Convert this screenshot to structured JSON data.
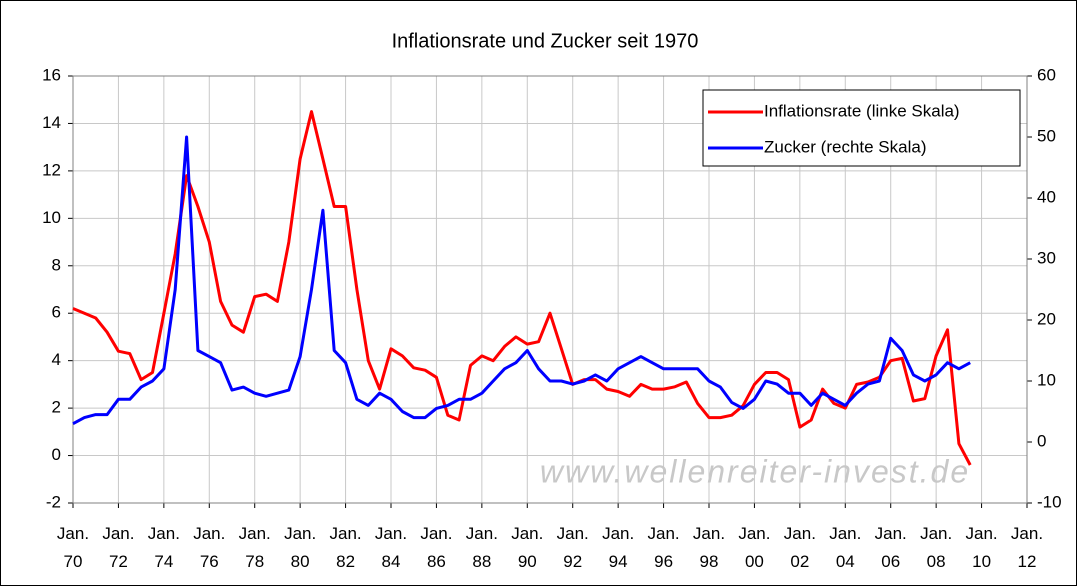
{
  "chart_data": {
    "type": "line",
    "title": "Inflationsrate und Zucker seit 1970",
    "watermark": "www.wellenreiter-invest.de",
    "x": [
      1970,
      1970.5,
      1971,
      1971.5,
      1972,
      1972.5,
      1973,
      1973.5,
      1974,
      1974.5,
      1975,
      1975.5,
      1976,
      1976.5,
      1977,
      1977.5,
      1978,
      1978.5,
      1979,
      1979.5,
      1980,
      1980.5,
      1981,
      1981.5,
      1982,
      1982.5,
      1983,
      1983.5,
      1984,
      1984.5,
      1985,
      1985.5,
      1986,
      1986.5,
      1987,
      1987.5,
      1988,
      1988.5,
      1989,
      1989.5,
      1990,
      1990.5,
      1991,
      1991.5,
      1992,
      1992.5,
      1993,
      1993.5,
      1994,
      1994.5,
      1995,
      1995.5,
      1996,
      1996.5,
      1997,
      1997.5,
      1998,
      1998.5,
      1999,
      1999.5,
      2000,
      2000.5,
      2001,
      2001.5,
      2002,
      2002.5,
      2003,
      2003.5,
      2004,
      2004.5,
      2005,
      2005.5,
      2006,
      2006.5,
      2007,
      2007.5,
      2008,
      2008.5,
      2009,
      2009.5
    ],
    "series": [
      {
        "name": "Inflationsrate (linke Skala)",
        "color": "#ff0000",
        "axis": "y",
        "values": [
          6.2,
          6.0,
          5.8,
          5.2,
          4.4,
          4.3,
          3.2,
          3.5,
          6.0,
          8.5,
          11.8,
          10.5,
          9.0,
          6.5,
          5.5,
          5.2,
          6.7,
          6.8,
          6.5,
          9.0,
          12.5,
          14.5,
          12.5,
          10.5,
          10.5,
          7.0,
          4.0,
          2.8,
          4.5,
          4.2,
          3.7,
          3.6,
          3.3,
          1.7,
          1.5,
          3.8,
          4.2,
          4.0,
          4.6,
          5.0,
          4.7,
          4.8,
          6.0,
          4.5,
          3.0,
          3.2,
          3.2,
          2.8,
          2.7,
          2.5,
          3.0,
          2.8,
          2.8,
          2.9,
          3.1,
          2.2,
          1.6,
          1.6,
          1.7,
          2.1,
          3.0,
          3.5,
          3.5,
          3.2,
          1.2,
          1.5,
          2.8,
          2.2,
          2.0,
          3.0,
          3.1,
          3.3,
          4.0,
          4.1,
          2.3,
          2.4,
          4.2,
          5.3,
          0.5,
          -0.4
        ]
      },
      {
        "name": "Zucker (rechte Skala)",
        "color": "#0000ff",
        "axis": "y2",
        "values": [
          3,
          4,
          4.5,
          4.5,
          7,
          7,
          9,
          10,
          12,
          25,
          50,
          15,
          14,
          13,
          8.5,
          9,
          8,
          7.5,
          8,
          8.5,
          14,
          25,
          38,
          15,
          13,
          7,
          6,
          8,
          7,
          5,
          4,
          4,
          5.5,
          6,
          7,
          7,
          8,
          10,
          12,
          13,
          15,
          12,
          10,
          10,
          9.5,
          10,
          11,
          10,
          12,
          13,
          14,
          13,
          12,
          12,
          12,
          12,
          10,
          9,
          6.5,
          5.5,
          7,
          10,
          9.5,
          8,
          8,
          6,
          8,
          7,
          6,
          8,
          9.5,
          10,
          17,
          15,
          11,
          10,
          11,
          13,
          12,
          13
        ]
      }
    ],
    "xlim": [
      1970,
      2012
    ],
    "xticks": [
      {
        "value": 1970,
        "label": "Jan. 70"
      },
      {
        "value": 1972,
        "label": "Jan. 72"
      },
      {
        "value": 1974,
        "label": "Jan. 74"
      },
      {
        "value": 1976,
        "label": "Jan. 76"
      },
      {
        "value": 1978,
        "label": "Jan. 78"
      },
      {
        "value": 1980,
        "label": "Jan. 80"
      },
      {
        "value": 1982,
        "label": "Jan. 82"
      },
      {
        "value": 1984,
        "label": "Jan. 84"
      },
      {
        "value": 1986,
        "label": "Jan. 86"
      },
      {
        "value": 1988,
        "label": "Jan. 88"
      },
      {
        "value": 1990,
        "label": "Jan. 90"
      },
      {
        "value": 1992,
        "label": "Jan. 92"
      },
      {
        "value": 1994,
        "label": "Jan. 94"
      },
      {
        "value": 1996,
        "label": "Jan. 96"
      },
      {
        "value": 1998,
        "label": "Jan. 98"
      },
      {
        "value": 2000,
        "label": "Jan. 00"
      },
      {
        "value": 2002,
        "label": "Jan. 02"
      },
      {
        "value": 2004,
        "label": "Jan. 04"
      },
      {
        "value": 2006,
        "label": "Jan. 06"
      },
      {
        "value": 2008,
        "label": "Jan. 08"
      },
      {
        "value": 2010,
        "label": "Jan. 10"
      },
      {
        "value": 2012,
        "label": "Jan. 12"
      }
    ],
    "ylim": [
      -2,
      16
    ],
    "yticks": [
      -2,
      0,
      2,
      4,
      6,
      8,
      10,
      12,
      14,
      16
    ],
    "y2lim": [
      -10,
      60
    ],
    "y2ticks": [
      -10,
      0,
      10,
      20,
      30,
      40,
      50,
      60
    ],
    "grid": true,
    "legend": "top-right"
  }
}
